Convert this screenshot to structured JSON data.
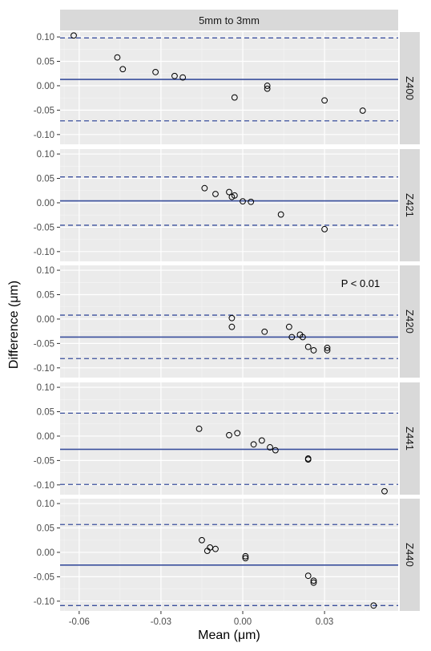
{
  "chart_data": {
    "type": "scatter",
    "title": "5mm to 3mm",
    "xlabel": "Mean (μm)",
    "ylabel": "Difference (μm)",
    "xlim": [
      -0.067,
      0.057
    ],
    "ylim": [
      -0.12,
      0.11
    ],
    "x_ticks": [
      -0.06,
      -0.03,
      0.0,
      0.03
    ],
    "x_tick_labels": [
      "-0.06",
      "-0.03",
      "0.00",
      "0.03"
    ],
    "y_ticks": [
      -0.1,
      -0.05,
      0.0,
      0.05,
      0.1
    ],
    "y_tick_labels": [
      "-0.10",
      "-0.05",
      "0.00",
      "0.05",
      "0.10"
    ],
    "grid": true,
    "panels": [
      {
        "label": "Z400",
        "mean_line": 0.013,
        "upper_loa": 0.098,
        "lower_loa": -0.072,
        "annotation": "",
        "points": [
          [
            -0.062,
            0.103
          ],
          [
            -0.046,
            0.058
          ],
          [
            -0.044,
            0.034
          ],
          [
            -0.032,
            0.028
          ],
          [
            -0.025,
            0.02
          ],
          [
            -0.022,
            0.017
          ],
          [
            -0.003,
            -0.024
          ],
          [
            0.009,
            0.0
          ],
          [
            0.009,
            -0.006
          ],
          [
            0.03,
            -0.03
          ],
          [
            0.044,
            -0.051
          ]
        ]
      },
      {
        "label": "Z421",
        "mean_line": 0.004,
        "upper_loa": 0.053,
        "lower_loa": -0.046,
        "annotation": "",
        "points": [
          [
            -0.014,
            0.03
          ],
          [
            -0.01,
            0.018
          ],
          [
            -0.005,
            0.022
          ],
          [
            -0.004,
            0.012
          ],
          [
            -0.003,
            0.015
          ],
          [
            0.0,
            0.003
          ],
          [
            0.003,
            0.002
          ],
          [
            0.014,
            -0.024
          ],
          [
            0.03,
            -0.054
          ]
        ]
      },
      {
        "label": "Z420",
        "mean_line": -0.037,
        "upper_loa": 0.008,
        "lower_loa": -0.081,
        "annotation": "P < 0.01",
        "points": [
          [
            -0.004,
            0.002
          ],
          [
            -0.004,
            -0.016
          ],
          [
            0.008,
            -0.026
          ],
          [
            0.017,
            -0.016
          ],
          [
            0.018,
            -0.037
          ],
          [
            0.021,
            -0.032
          ],
          [
            0.022,
            -0.037
          ],
          [
            0.024,
            -0.057
          ],
          [
            0.026,
            -0.064
          ],
          [
            0.031,
            -0.059
          ],
          [
            0.031,
            -0.064
          ]
        ]
      },
      {
        "label": "Z441",
        "mean_line": -0.027,
        "upper_loa": 0.047,
        "lower_loa": -0.099,
        "annotation": "",
        "points": [
          [
            -0.016,
            0.015
          ],
          [
            -0.005,
            0.002
          ],
          [
            -0.002,
            0.006
          ],
          [
            0.004,
            -0.017
          ],
          [
            0.007,
            -0.009
          ],
          [
            0.01,
            -0.023
          ],
          [
            0.012,
            -0.029
          ],
          [
            0.024,
            -0.046
          ],
          [
            0.024,
            -0.048
          ],
          [
            0.052,
            -0.113
          ]
        ]
      },
      {
        "label": "Z440",
        "mean_line": -0.026,
        "upper_loa": 0.057,
        "lower_loa": -0.109,
        "annotation": "",
        "points": [
          [
            -0.015,
            0.025
          ],
          [
            -0.013,
            0.003
          ],
          [
            -0.012,
            0.01
          ],
          [
            -0.01,
            0.007
          ],
          [
            0.001,
            -0.008
          ],
          [
            0.001,
            -0.012
          ],
          [
            0.024,
            -0.048
          ],
          [
            0.026,
            -0.058
          ],
          [
            0.026,
            -0.062
          ],
          [
            0.048,
            -0.109
          ]
        ]
      }
    ]
  },
  "colors": {
    "panel_bg": "#ebebeb",
    "grid_major": "#ffffff",
    "grid_minor": "#f5f5f5",
    "strip_bg": "#d9d9d9",
    "mean_line": "#3a4f9c",
    "loa_line": "#3a4f9c",
    "point_stroke": "#000000",
    "tick": "#333333"
  }
}
